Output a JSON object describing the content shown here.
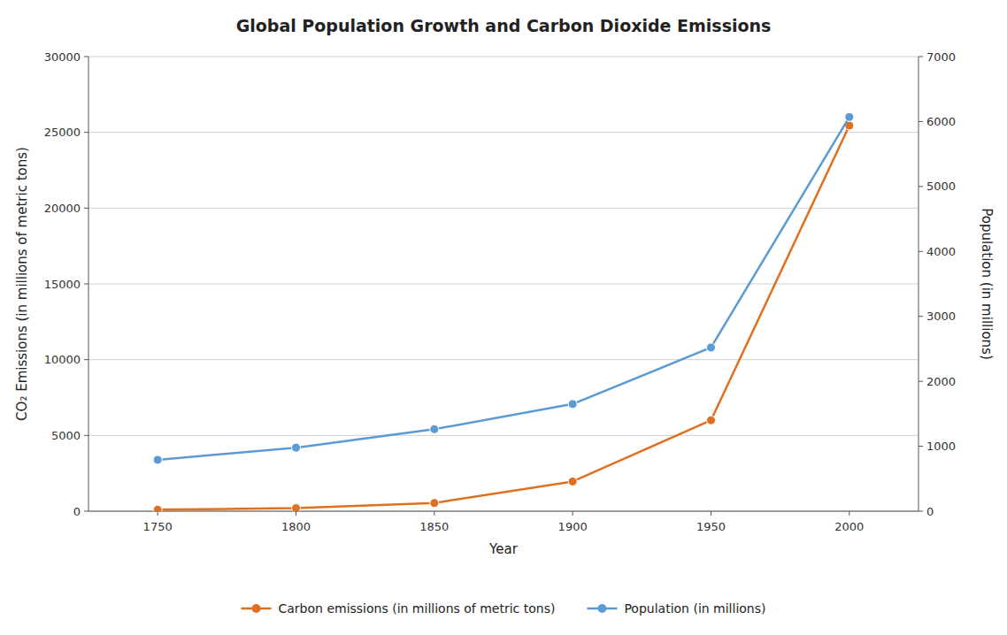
{
  "chart_data": {
    "type": "line",
    "title": "Global Population Growth and Carbon Dioxide Emissions",
    "x_label": "Year",
    "y_label": "CO₂ Emissions (in millions of metric tons)",
    "y2_label": "Population (in millions)",
    "x": [
      1750,
      1800,
      1850,
      1900,
      1950,
      2000
    ],
    "xlim": [
      1725,
      2025
    ],
    "xticks": [
      1750,
      1800,
      1850,
      1900,
      1950,
      2000
    ],
    "ylim": [
      0,
      30000
    ],
    "yticks": [
      0,
      5000,
      10000,
      15000,
      20000,
      25000,
      30000
    ],
    "y2lim": [
      0,
      7000
    ],
    "y2ticks": [
      0,
      1000,
      2000,
      3000,
      4000,
      5000,
      6000,
      7000
    ],
    "grid": true,
    "legend": "bottom",
    "marker": "circle",
    "line_style": "solid",
    "series": [
      {
        "name": "Carbon emissions (in millions of metric tons)",
        "color": "#E07020",
        "axis": "y",
        "values": [
          98,
          198,
          540,
          1960,
          6000,
          25450
        ]
      },
      {
        "name": "Population (in millions)",
        "color": "#5B9BD5",
        "axis": "y2",
        "values": [
          791,
          978,
          1262,
          1650,
          2521,
          6070
        ]
      }
    ]
  }
}
